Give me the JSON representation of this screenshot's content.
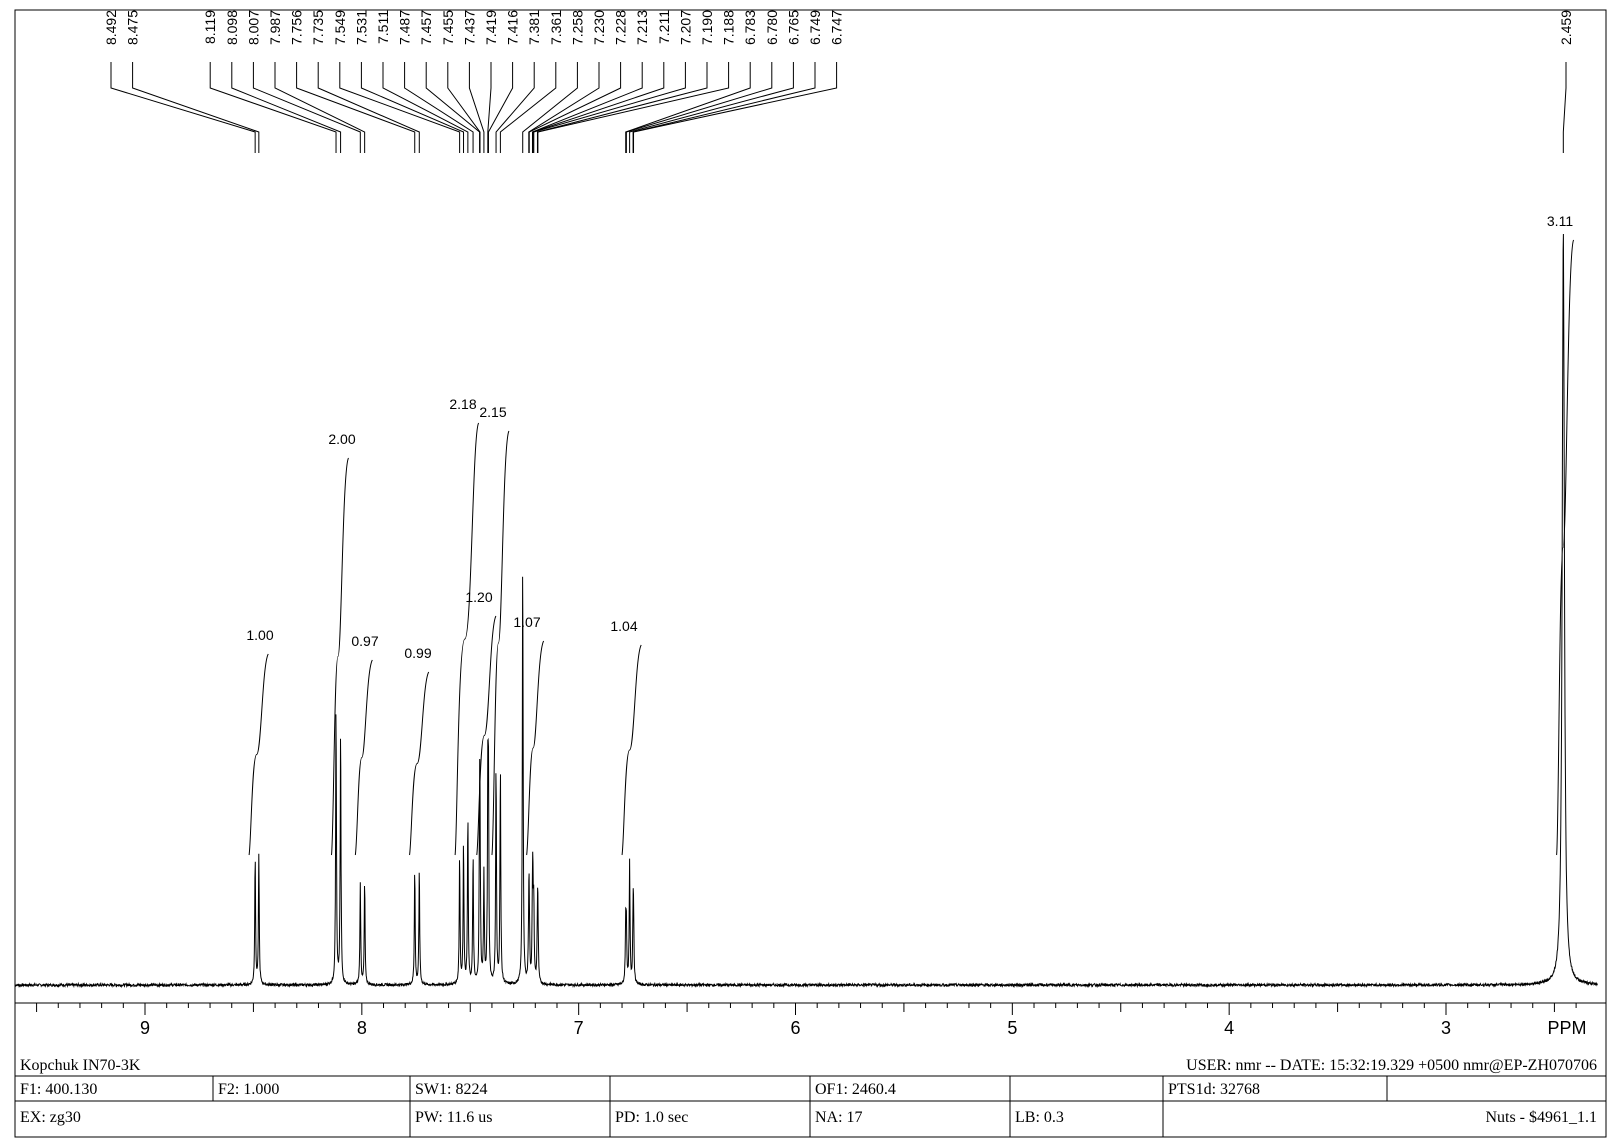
{
  "chart_data": {
    "type": "line",
    "xlabel": "PPM",
    "xlim": [
      9.6,
      2.3
    ],
    "x_reversed": true,
    "x_ticks": [
      9,
      8,
      7,
      6,
      5,
      4,
      3
    ],
    "peak_labels": [
      "8.492",
      "8.475",
      "8.119",
      "8.098",
      "8.007",
      "7.987",
      "7.756",
      "7.735",
      "7.549",
      "7.531",
      "7.511",
      "7.487",
      "7.457",
      "7.455",
      "7.437",
      "7.419",
      "7.416",
      "7.381",
      "7.361",
      "7.258",
      "7.230",
      "7.228",
      "7.213",
      "7.211",
      "7.207",
      "7.190",
      "7.188",
      "6.783",
      "6.780",
      "6.765",
      "6.749",
      "6.747",
      "2.459"
    ],
    "peaks": [
      {
        "ppm": 8.492,
        "height": 0.2
      },
      {
        "ppm": 8.475,
        "height": 0.2
      },
      {
        "ppm": 8.119,
        "height": 0.44
      },
      {
        "ppm": 8.098,
        "height": 0.4
      },
      {
        "ppm": 8.007,
        "height": 0.16
      },
      {
        "ppm": 7.987,
        "height": 0.16
      },
      {
        "ppm": 7.756,
        "height": 0.18
      },
      {
        "ppm": 7.735,
        "height": 0.18
      },
      {
        "ppm": 7.549,
        "height": 0.2
      },
      {
        "ppm": 7.531,
        "height": 0.22
      },
      {
        "ppm": 7.511,
        "height": 0.26
      },
      {
        "ppm": 7.487,
        "height": 0.2
      },
      {
        "ppm": 7.457,
        "height": 0.22
      },
      {
        "ppm": 7.455,
        "height": 0.2
      },
      {
        "ppm": 7.437,
        "height": 0.17
      },
      {
        "ppm": 7.419,
        "height": 0.28
      },
      {
        "ppm": 7.416,
        "height": 0.27
      },
      {
        "ppm": 7.381,
        "height": 0.34
      },
      {
        "ppm": 7.361,
        "height": 0.34
      },
      {
        "ppm": 7.258,
        "height": 0.67
      },
      {
        "ppm": 7.23,
        "height": 0.1
      },
      {
        "ppm": 7.228,
        "height": 0.1
      },
      {
        "ppm": 7.213,
        "height": 0.11
      },
      {
        "ppm": 7.211,
        "height": 0.11
      },
      {
        "ppm": 7.207,
        "height": 0.11
      },
      {
        "ppm": 7.19,
        "height": 0.09
      },
      {
        "ppm": 7.188,
        "height": 0.09
      },
      {
        "ppm": 6.783,
        "height": 0.09
      },
      {
        "ppm": 6.78,
        "height": 0.08
      },
      {
        "ppm": 6.765,
        "height": 0.19
      },
      {
        "ppm": 6.749,
        "height": 0.09
      },
      {
        "ppm": 6.747,
        "height": 0.09
      },
      {
        "ppm": 2.459,
        "height": 1.18
      }
    ],
    "integrals": [
      {
        "label": "1.00",
        "from": 8.52,
        "to": 8.45
      },
      {
        "label": "2.00",
        "from": 8.14,
        "to": 8.08
      },
      {
        "label": "0.97",
        "from": 8.03,
        "to": 7.97
      },
      {
        "label": "0.99",
        "from": 7.78,
        "to": 7.71
      },
      {
        "label": "2.18",
        "from": 7.57,
        "to": 7.48
      },
      {
        "label": "1.20",
        "from": 7.47,
        "to": 7.4
      },
      {
        "label": "2.15",
        "from": 7.4,
        "to": 7.34
      },
      {
        "label": "1.07",
        "from": 7.24,
        "to": 7.18
      },
      {
        "label": "1.04",
        "from": 6.8,
        "to": 6.73
      },
      {
        "label": "3.11",
        "from": 2.49,
        "to": 2.43
      }
    ]
  },
  "footer": {
    "sample": "Kopchuk IN70-3K",
    "user_line": "USER: nmr -- DATE: 15:32:19.329 +0500  nmr@EP-ZH070706",
    "row1": [
      "F1: 400.130",
      "F2: 1.000",
      "SW1: 8224",
      "",
      "OF1: 2460.4",
      "",
      "PTS1d: 32768",
      ""
    ],
    "row2": [
      "EX: zg30",
      "",
      "PW: 11.6 us",
      "PD: 1.0   sec",
      "NA: 17",
      "LB: 0.3",
      "Nuts - $4961_1.1"
    ]
  }
}
